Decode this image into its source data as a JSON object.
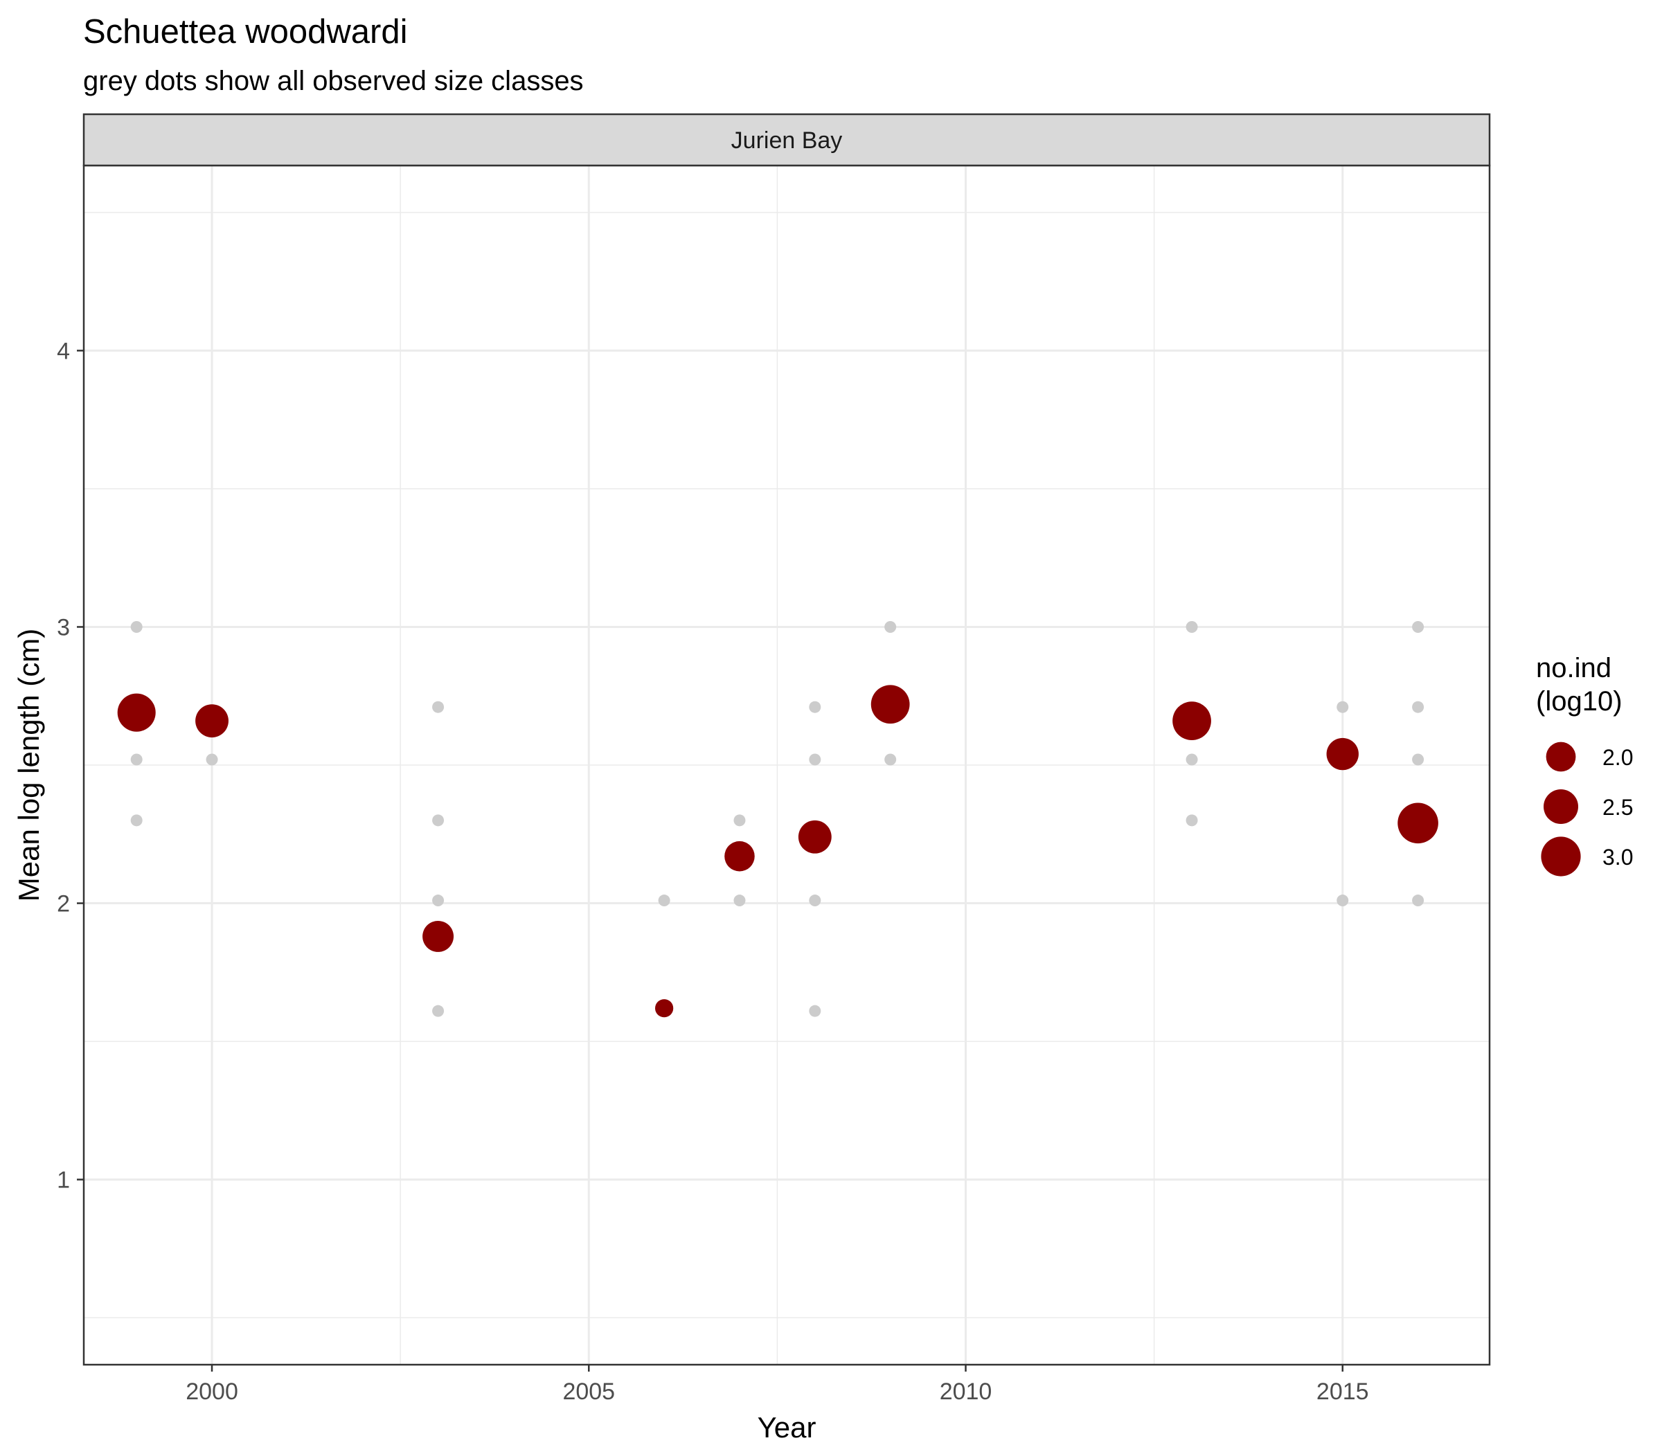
{
  "title": "Schuettea woodwardi",
  "subtitle": "grey dots show all observed size classes",
  "chart_data": {
    "type": "scatter",
    "title": "Schuettea woodwardi",
    "subtitle": "grey dots show all observed size classes",
    "facet": "Jurien Bay",
    "xlabel": "Year",
    "ylabel": "Mean log length (cm)",
    "xlim": [
      1998.3,
      2016.95
    ],
    "ylim": [
      0.33,
      4.67
    ],
    "x_ticks": [
      2000,
      2005,
      2010,
      2015
    ],
    "y_ticks": [
      1,
      2,
      3,
      4
    ],
    "grid": true,
    "colors": {
      "mean": "#8B0000",
      "observed": "#cccccc",
      "strip": "#d9d9d9",
      "grid": "#ebebeb"
    },
    "series": [
      {
        "role": "observed",
        "points": [
          {
            "x": 1999,
            "y": 3.0
          },
          {
            "x": 1999,
            "y": 2.52
          },
          {
            "x": 1999,
            "y": 2.3
          },
          {
            "x": 2000,
            "y": 2.52
          },
          {
            "x": 2003,
            "y": 2.71
          },
          {
            "x": 2003,
            "y": 2.3
          },
          {
            "x": 2003,
            "y": 2.01
          },
          {
            "x": 2003,
            "y": 1.61
          },
          {
            "x": 2006,
            "y": 2.01
          },
          {
            "x": 2006,
            "y": 1.61
          },
          {
            "x": 2007,
            "y": 2.3
          },
          {
            "x": 2007,
            "y": 2.01
          },
          {
            "x": 2008,
            "y": 2.71
          },
          {
            "x": 2008,
            "y": 2.52
          },
          {
            "x": 2008,
            "y": 2.01
          },
          {
            "x": 2008,
            "y": 1.61
          },
          {
            "x": 2009,
            "y": 3.0
          },
          {
            "x": 2009,
            "y": 2.52
          },
          {
            "x": 2013,
            "y": 3.0
          },
          {
            "x": 2013,
            "y": 2.52
          },
          {
            "x": 2013,
            "y": 2.3
          },
          {
            "x": 2015,
            "y": 2.71
          },
          {
            "x": 2015,
            "y": 2.01
          },
          {
            "x": 2016,
            "y": 3.0
          },
          {
            "x": 2016,
            "y": 2.71
          },
          {
            "x": 2016,
            "y": 2.52
          },
          {
            "x": 2016,
            "y": 2.01
          }
        ]
      },
      {
        "role": "mean",
        "points": [
          {
            "x": 1999,
            "y": 2.69,
            "size": 2.85
          },
          {
            "x": 2000,
            "y": 2.66,
            "size": 2.35
          },
          {
            "x": 2003,
            "y": 1.88,
            "size": 2.15
          },
          {
            "x": 2006,
            "y": 1.62,
            "size": 0.85
          },
          {
            "x": 2007,
            "y": 2.17,
            "size": 2.05
          },
          {
            "x": 2008,
            "y": 2.24,
            "size": 2.35
          },
          {
            "x": 2009,
            "y": 2.72,
            "size": 2.9
          },
          {
            "x": 2013,
            "y": 2.66,
            "size": 2.9
          },
          {
            "x": 2015,
            "y": 2.54,
            "size": 2.25
          },
          {
            "x": 2016,
            "y": 2.29,
            "size": 3.1
          }
        ]
      }
    ],
    "legend": {
      "title_line1": "no.ind",
      "title_line2": "(log10)",
      "position": "right",
      "entries": [
        {
          "label": "2.0",
          "size": 2.0
        },
        {
          "label": "2.5",
          "size": 2.5
        },
        {
          "label": "3.0",
          "size": 3.0
        }
      ]
    }
  }
}
